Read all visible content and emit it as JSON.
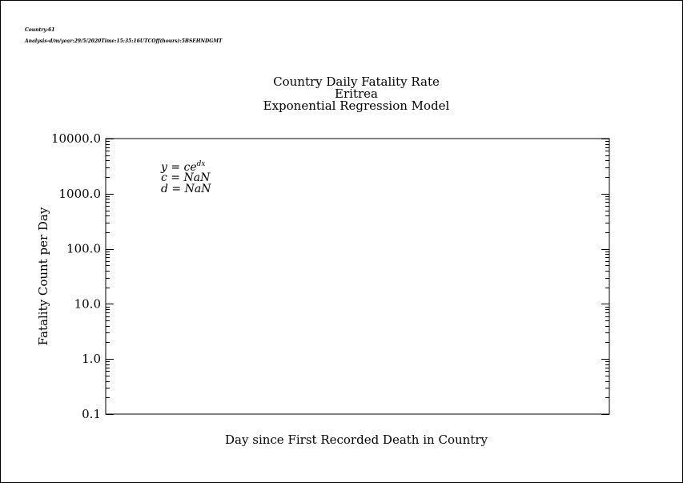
{
  "header": {
    "line1": "Country:61",
    "line2": "Analysis-d/m/year:29/5/2020Time:15:35:16UTCOff(hours):5BSEHNDGMT"
  },
  "chart_data": {
    "type": "scatter",
    "title": [
      "Country Daily Fatality Rate",
      "Eritrea",
      "Exponential Regression Model"
    ],
    "xlabel": "Day since First Recorded Death in Country",
    "ylabel": "Fatality Count per Day",
    "yscale": "log",
    "ylim": [
      0.1,
      10000.0
    ],
    "yticks": [
      "10000.0",
      "1000.0",
      "100.0",
      "10.0",
      "1.0",
      "0.1"
    ],
    "series": [],
    "equation": {
      "model_base": "y = ce",
      "model_exp": "dx",
      "c_line": "c = NaN",
      "d_line": "d = NaN"
    },
    "grid": false,
    "legend": "none"
  }
}
